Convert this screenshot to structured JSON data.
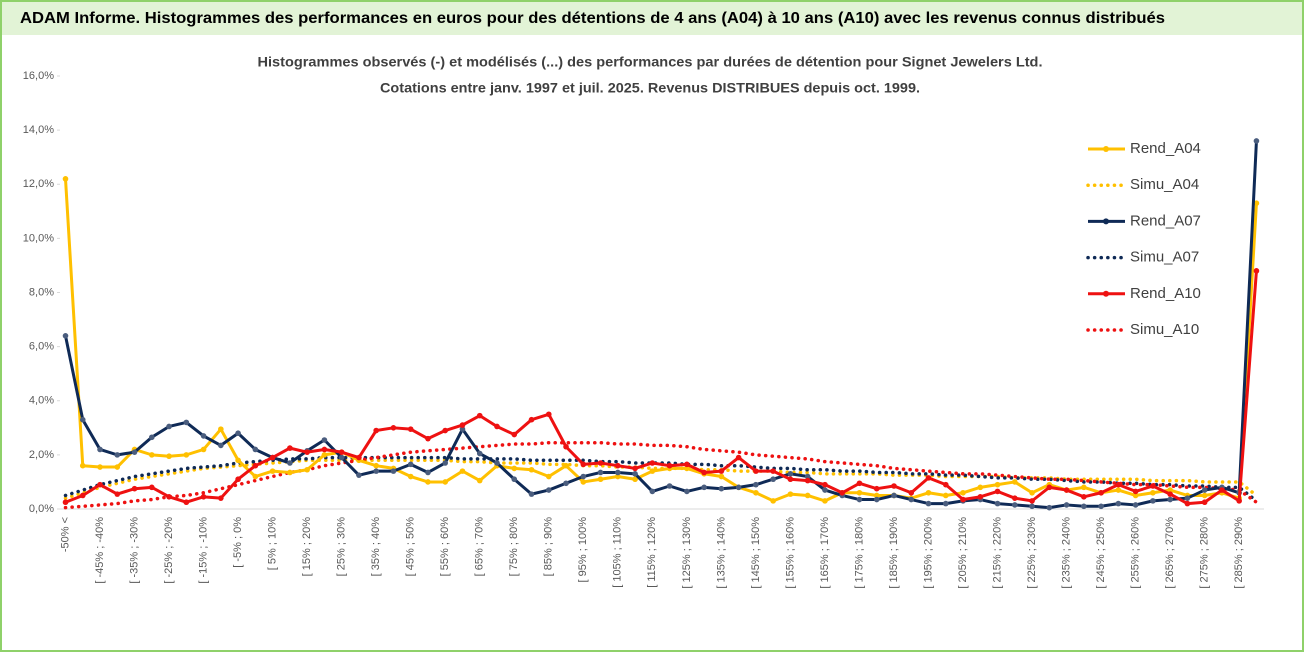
{
  "header_title": "ADAM Informe. Histogrammes des performances en euros pour des détentions de 4 ans (A04) à 10 ans (A10) avec les revenus connus distribués",
  "chart_data": {
    "type": "line",
    "title": "Histogrammes observés (-) et modélisés (...)  des performances par durées de détention pour Signet Jewelers Ltd.",
    "subtitle": "Cotations entre janv. 1997 et juil. 2025. Revenus DISTRIBUES depuis oct. 1999.",
    "categories": [
      "-50% <",
      null,
      "[ -45% ; -40%",
      null,
      "[ -35% ; -30%",
      null,
      "[ -25% ; -20%",
      null,
      "[ -15% ; -10%",
      null,
      "[ -5% ; 0%",
      null,
      "[ 5% ; 10%",
      null,
      "[ 15% ; 20%",
      null,
      "[ 25% ; 30%",
      null,
      "[ 35% ; 40%",
      null,
      "[ 45% ; 50%",
      null,
      "[ 55% ; 60%",
      null,
      "[ 65% ; 70%",
      null,
      "[ 75% ; 80%",
      null,
      "[ 85% ; 90%",
      null,
      "[ 95% ; 100%",
      null,
      "[ 105% ; 110%",
      null,
      "[ 115% ; 120%",
      null,
      "[ 125% ; 130%",
      null,
      "[ 135% ; 140%",
      null,
      "[ 145% ; 150%",
      null,
      "[ 155% ; 160%",
      null,
      "[ 165% ; 170%",
      null,
      "[ 175% ; 180%",
      null,
      "[ 185% ; 190%",
      null,
      "[ 195% ; 200%",
      null,
      "[ 205% ; 210%",
      null,
      "[ 215% ; 220%",
      null,
      "[ 225% ; 230%",
      null,
      "[ 235% ; 240%",
      null,
      "[ 245% ; 250%",
      null,
      "[ 255% ; 260%",
      null,
      "[ 265% ; 270%",
      null,
      "[ 275% ; 280%",
      null,
      "[ 285% ; 290%",
      null
    ],
    "ylim": [
      0,
      16
    ],
    "yticks": [
      {
        "value": 0,
        "label": "0,0%"
      },
      {
        "value": 2,
        "label": "2,0%"
      },
      {
        "value": 4,
        "label": "4,0%"
      },
      {
        "value": 6,
        "label": "6,0%"
      },
      {
        "value": 8,
        "label": "8,0%"
      },
      {
        "value": 10,
        "label": "10,0%"
      },
      {
        "value": 12,
        "label": "12,0%"
      },
      {
        "value": 14,
        "label": "14,0%"
      },
      {
        "value": 16,
        "label": "16,0%"
      }
    ],
    "series": [
      {
        "name": "Rend_A04",
        "color": "#ffc000",
        "style": "solid",
        "values": [
          12.2,
          1.6,
          1.55,
          1.55,
          2.2,
          2.0,
          1.95,
          2.0,
          2.2,
          2.95,
          1.8,
          1.2,
          1.4,
          1.35,
          1.45,
          2.0,
          2.1,
          1.8,
          1.6,
          1.5,
          1.2,
          1.0,
          1.0,
          1.4,
          1.05,
          1.6,
          1.5,
          1.45,
          1.2,
          1.6,
          1.0,
          1.1,
          1.2,
          1.1,
          1.4,
          1.5,
          1.5,
          1.3,
          1.2,
          0.8,
          0.6,
          0.3,
          0.55,
          0.5,
          0.3,
          0.6,
          0.6,
          0.5,
          0.5,
          0.4,
          0.6,
          0.5,
          0.6,
          0.8,
          0.9,
          1.0,
          0.6,
          0.9,
          0.7,
          0.8,
          0.6,
          0.7,
          0.5,
          0.6,
          0.7,
          0.5,
          0.5,
          0.6,
          0.4,
          11.3
        ]
      },
      {
        "name": "Simu_A04",
        "color": "#ffc000",
        "style": "dotted",
        "values": [
          0.4,
          0.6,
          0.8,
          0.95,
          1.1,
          1.2,
          1.3,
          1.4,
          1.5,
          1.55,
          1.6,
          1.65,
          1.7,
          1.75,
          1.8,
          1.8,
          1.8,
          1.8,
          1.8,
          1.8,
          1.8,
          1.8,
          1.8,
          1.75,
          1.75,
          1.7,
          1.7,
          1.7,
          1.65,
          1.65,
          1.6,
          1.6,
          1.55,
          1.55,
          1.5,
          1.5,
          1.5,
          1.45,
          1.45,
          1.4,
          1.4,
          1.4,
          1.35,
          1.35,
          1.3,
          1.3,
          1.3,
          1.3,
          1.25,
          1.25,
          1.25,
          1.2,
          1.2,
          1.2,
          1.2,
          1.15,
          1.15,
          1.15,
          1.1,
          1.1,
          1.1,
          1.1,
          1.1,
          1.05,
          1.05,
          1.05,
          1.0,
          1.0,
          1.0,
          0.5
        ]
      },
      {
        "name": "Rend_A07",
        "color": "#0f2a56",
        "style": "solid",
        "values": [
          6.4,
          3.3,
          2.2,
          2.0,
          2.1,
          2.65,
          3.05,
          3.2,
          2.7,
          2.35,
          2.8,
          2.2,
          1.9,
          1.7,
          2.15,
          2.55,
          1.9,
          1.25,
          1.4,
          1.4,
          1.65,
          1.35,
          1.7,
          2.95,
          2.05,
          1.7,
          1.1,
          0.55,
          0.7,
          0.95,
          1.2,
          1.35,
          1.35,
          1.3,
          0.65,
          0.85,
          0.65,
          0.8,
          0.75,
          0.8,
          0.9,
          1.1,
          1.3,
          1.2,
          0.7,
          0.5,
          0.35,
          0.35,
          0.5,
          0.35,
          0.2,
          0.2,
          0.3,
          0.35,
          0.2,
          0.15,
          0.1,
          0.05,
          0.15,
          0.1,
          0.1,
          0.2,
          0.15,
          0.3,
          0.35,
          0.4,
          0.7,
          0.8,
          0.6,
          13.6
        ]
      },
      {
        "name": "Simu_A07",
        "color": "#0f2a56",
        "style": "dotted",
        "values": [
          0.5,
          0.7,
          0.9,
          1.05,
          1.2,
          1.3,
          1.4,
          1.5,
          1.55,
          1.6,
          1.7,
          1.75,
          1.8,
          1.85,
          1.85,
          1.9,
          1.9,
          1.9,
          1.9,
          1.9,
          1.9,
          1.9,
          1.9,
          1.85,
          1.85,
          1.85,
          1.85,
          1.8,
          1.8,
          1.8,
          1.8,
          1.75,
          1.75,
          1.7,
          1.7,
          1.7,
          1.65,
          1.65,
          1.6,
          1.6,
          1.55,
          1.5,
          1.5,
          1.45,
          1.45,
          1.4,
          1.4,
          1.35,
          1.35,
          1.3,
          1.3,
          1.25,
          1.25,
          1.2,
          1.15,
          1.15,
          1.1,
          1.1,
          1.05,
          1.0,
          1.0,
          0.95,
          0.95,
          0.9,
          0.9,
          0.85,
          0.85,
          0.8,
          0.8,
          0.3
        ]
      },
      {
        "name": "Rend_A10",
        "color": "#ee1111",
        "style": "solid",
        "values": [
          0.25,
          0.5,
          0.9,
          0.55,
          0.75,
          0.8,
          0.45,
          0.25,
          0.45,
          0.4,
          1.1,
          1.6,
          1.9,
          2.25,
          2.1,
          2.2,
          2.1,
          1.9,
          2.9,
          3.0,
          2.95,
          2.6,
          2.9,
          3.1,
          3.45,
          3.05,
          2.75,
          3.3,
          3.5,
          2.3,
          1.65,
          1.7,
          1.6,
          1.5,
          1.7,
          1.6,
          1.65,
          1.35,
          1.4,
          1.9,
          1.4,
          1.4,
          1.1,
          1.05,
          0.9,
          0.6,
          0.95,
          0.75,
          0.85,
          0.6,
          1.15,
          0.9,
          0.35,
          0.45,
          0.65,
          0.4,
          0.3,
          0.8,
          0.7,
          0.45,
          0.6,
          0.9,
          0.65,
          0.85,
          0.55,
          0.2,
          0.25,
          0.7,
          0.3,
          8.8
        ]
      },
      {
        "name": "Simu_A10",
        "color": "#ee1111",
        "style": "dotted",
        "values": [
          0.05,
          0.1,
          0.15,
          0.2,
          0.3,
          0.35,
          0.45,
          0.5,
          0.6,
          0.75,
          0.9,
          1.05,
          1.2,
          1.35,
          1.45,
          1.6,
          1.7,
          1.8,
          1.9,
          2.0,
          2.1,
          2.15,
          2.2,
          2.25,
          2.3,
          2.35,
          2.4,
          2.4,
          2.45,
          2.45,
          2.45,
          2.45,
          2.4,
          2.4,
          2.35,
          2.35,
          2.3,
          2.2,
          2.15,
          2.1,
          2.0,
          1.95,
          1.9,
          1.85,
          1.75,
          1.7,
          1.65,
          1.6,
          1.5,
          1.45,
          1.4,
          1.35,
          1.3,
          1.3,
          1.25,
          1.2,
          1.15,
          1.1,
          1.1,
          1.05,
          1.0,
          0.95,
          0.9,
          0.9,
          0.85,
          0.8,
          0.8,
          0.75,
          0.7,
          0.25
        ]
      }
    ]
  }
}
